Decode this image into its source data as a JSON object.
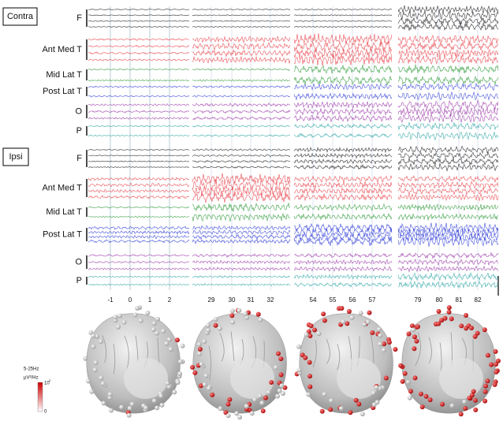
{
  "groups": [
    {
      "label": "Contra",
      "channels": [
        "F",
        "Ant Med T",
        "Mid Lat T",
        "Post Lat T",
        "O",
        "P"
      ]
    },
    {
      "label": "Ipsi",
      "channels": [
        "F",
        "Ant Med T",
        "Mid Lat T",
        "Post Lat T",
        "O",
        "P"
      ]
    }
  ],
  "time_axes": [
    [
      -1,
      0,
      1,
      2
    ],
    [
      29,
      30,
      31,
      32
    ],
    [
      54,
      55,
      56,
      57
    ],
    [
      79,
      80,
      81,
      82
    ]
  ],
  "colorbar": {
    "band": "5-25Hz",
    "unit": "µV²/Hz",
    "max_base": "10",
    "max_exp": "2",
    "min": "0"
  }
}
